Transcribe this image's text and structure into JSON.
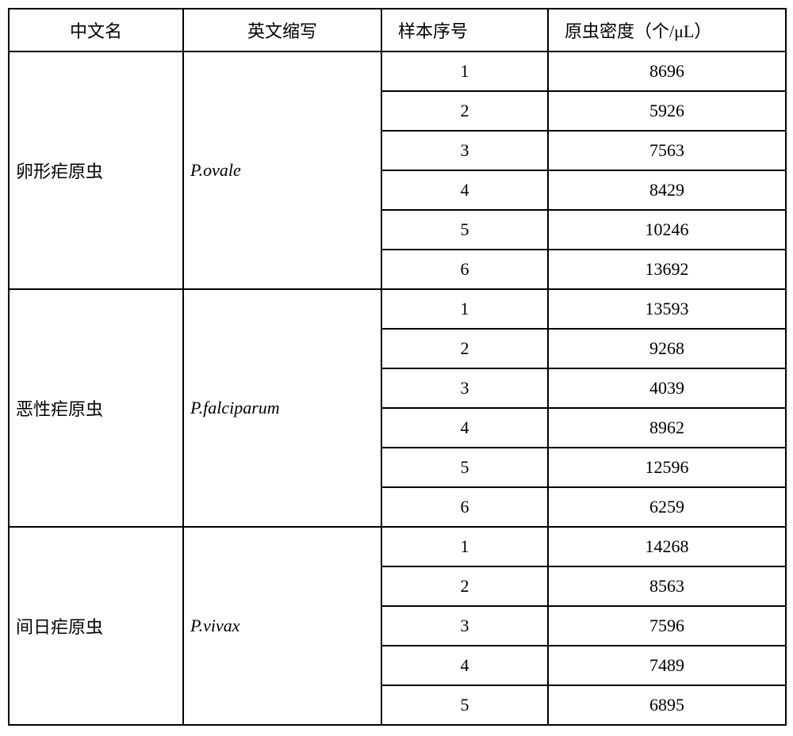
{
  "table": {
    "headers": {
      "cn_name": "中文名",
      "en_abbr": "英文缩写",
      "sample_no": "样本序号",
      "density": "原虫密度（个/μL）"
    },
    "groups": [
      {
        "cn": "卵形疟原虫",
        "en": "P.ovale",
        "rows": [
          {
            "no": "1",
            "val": "8696"
          },
          {
            "no": "2",
            "val": "5926"
          },
          {
            "no": "3",
            "val": "7563"
          },
          {
            "no": "4",
            "val": "8429"
          },
          {
            "no": "5",
            "val": "10246"
          },
          {
            "no": "6",
            "val": "13692"
          }
        ]
      },
      {
        "cn": "恶性疟原虫",
        "en": "P.falciparum",
        "rows": [
          {
            "no": "1",
            "val": "13593"
          },
          {
            "no": "2",
            "val": "9268"
          },
          {
            "no": "3",
            "val": "4039"
          },
          {
            "no": "4",
            "val": "8962"
          },
          {
            "no": "5",
            "val": "12596"
          },
          {
            "no": "6",
            "val": "6259"
          }
        ]
      },
      {
        "cn": "间日疟原虫",
        "en": "P.vivax",
        "rows": [
          {
            "no": "1",
            "val": "14268"
          },
          {
            "no": "2",
            "val": "8563"
          },
          {
            "no": "3",
            "val": "7596"
          },
          {
            "no": "4",
            "val": "7489"
          },
          {
            "no": "5",
            "val": "6895"
          }
        ]
      }
    ]
  }
}
